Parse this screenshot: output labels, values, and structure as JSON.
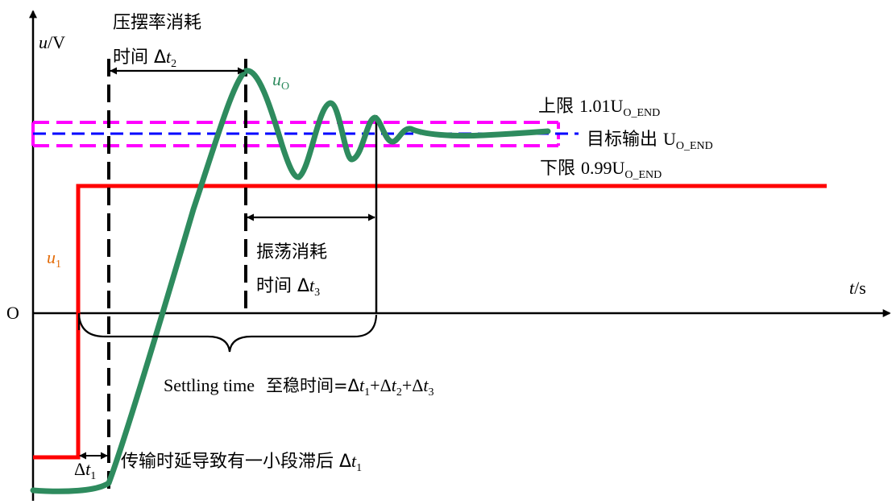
{
  "axes": {
    "y_label_var": "u",
    "y_label_unit": "/V",
    "x_label_var": "t",
    "x_label_unit": "/s",
    "origin": "O"
  },
  "curves": {
    "output_label": "u",
    "output_sub": "O",
    "input_label": "u",
    "input_sub": "1"
  },
  "annotations": {
    "t2_line1": "压摆率消耗",
    "t2_line2_cn": "时间 Δ",
    "t2_var": "t",
    "t2_sub": "2",
    "t3_line1": "振荡消耗",
    "t3_line2_cn": "时间 Δ",
    "t3_var": "t",
    "t3_sub": "3",
    "upper_cn": "上限 ",
    "upper_val": "1.01U",
    "upper_sub": "O_END",
    "target_cn": "目标输出 ",
    "target_val": "U",
    "target_sub": "O_END",
    "lower_cn": "下限 ",
    "lower_val": "0.99U",
    "lower_sub": "O_END",
    "settling_en": "Settling time",
    "settling_cn": "至稳时间=Δ",
    "settling_t": "t",
    "settling_s1": "1",
    "settling_plus1": "+Δ",
    "settling_s2": "2",
    "settling_plus2": "+Δ",
    "settling_s3": "3",
    "t1_delta": "Δ",
    "t1_var": "t",
    "t1_sub": "1",
    "delay_cn": "传输时延导致有一小段滞后 Δ",
    "delay_var": "t",
    "delay_sub": "1"
  },
  "colors": {
    "output": "#2e8b5e",
    "input": "#ff0000",
    "target": "#0000ff",
    "limits": "#ff00ff",
    "input_label": "#e36c09",
    "output_label": "#2e8b5e"
  }
}
